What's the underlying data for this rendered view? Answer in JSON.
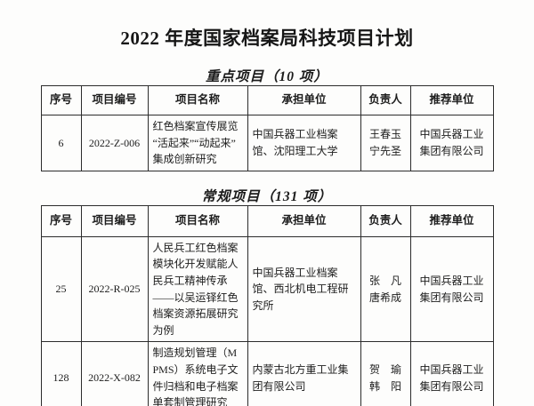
{
  "page": {
    "title": "2022 年度国家档案局科技项目计划"
  },
  "sections": [
    {
      "heading": "重点项目（10 项）",
      "columns": [
        "序号",
        "项目编号",
        "项目名称",
        "承担单位",
        "负责人",
        "推荐单位"
      ],
      "rows": [
        {
          "seq": "6",
          "code": "2022-Z-006",
          "name": "红色档案宣传展览“活起来”“动起来”集成创新研究",
          "unit": "中国兵器工业档案馆、沈阳理工大学",
          "leaders": "王春玉\n宁先圣",
          "recommender": "中国兵器工业集团有限公司"
        }
      ]
    },
    {
      "heading": "常规项目（131 项）",
      "columns": [
        "序号",
        "项目编号",
        "项目名称",
        "承担单位",
        "负责人",
        "推荐单位"
      ],
      "rows": [
        {
          "seq": "25",
          "code": "2022-R-025",
          "name": "人民兵工红色档案模块化开发赋能人民兵工精神传承——以吴运铎红色档案资源拓展研究为例",
          "unit": "中国兵器工业档案馆、西北机电工程研究所",
          "leaders": "张　凡\n唐希成",
          "recommender": "中国兵器工业集团有限公司"
        },
        {
          "seq": "128",
          "code": "2022-X-082",
          "name": "制造规划管理（MPMS）系统电子文件归档和电子档案单套制管理研究",
          "unit": "内蒙古北方重工业集团有限公司",
          "leaders": "贺　瑜\n韩　阳",
          "recommender": "中国兵器工业集团有限公司"
        }
      ]
    }
  ]
}
